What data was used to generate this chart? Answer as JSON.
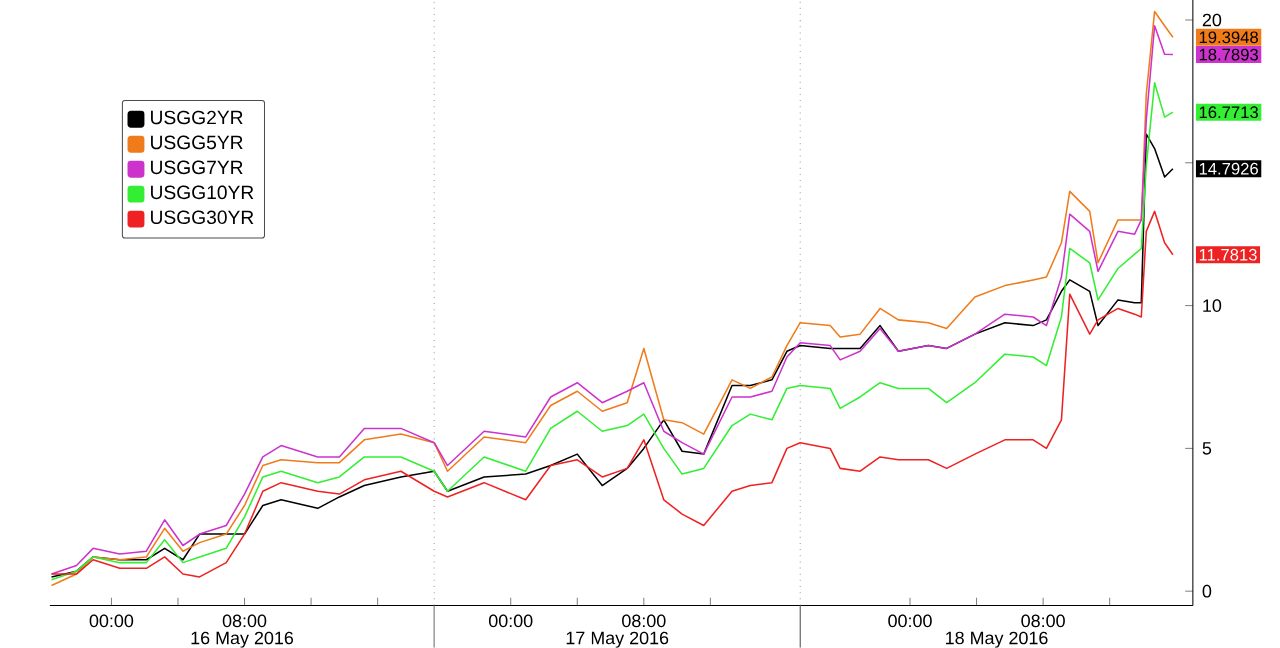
{
  "chart_data": {
    "type": "line",
    "x": [
      "2016-05-15T20:24",
      "2016-05-15T21:54",
      "2016-05-15T22:54",
      "2016-05-16T00:30",
      "2016-05-16T02:06",
      "2016-05-16T03:12",
      "2016-05-16T04:18",
      "2016-05-16T05:18",
      "2016-05-16T06:54",
      "2016-05-16T08:00",
      "2016-05-16T09:06",
      "2016-05-16T10:12",
      "2016-05-16T12:24",
      "2016-05-16T13:42",
      "2016-05-16T15:12",
      "2016-05-16T17:24",
      "2016-05-16T19:24",
      "2016-05-16T20:12",
      "2016-05-16T22:24",
      "2016-05-17T00:54",
      "2016-05-17T02:24",
      "2016-05-17T04:00",
      "2016-05-17T05:30",
      "2016-05-17T07:00",
      "2016-05-17T08:00",
      "2016-05-17T09:12",
      "2016-05-17T10:18",
      "2016-05-17T11:36",
      "2016-05-17T13:18",
      "2016-05-17T14:24",
      "2016-05-17T15:42",
      "2016-05-17T16:36",
      "2016-05-17T17:24",
      "2016-05-17T19:12",
      "2016-05-17T19:48",
      "2016-05-17T21:00",
      "2016-05-17T22:12",
      "2016-05-17T23:18",
      "2016-05-18T01:06",
      "2016-05-18T02:12",
      "2016-05-18T03:54",
      "2016-05-18T05:42",
      "2016-05-18T07:24",
      "2016-05-18T08:12",
      "2016-05-18T09:06",
      "2016-05-18T09:36",
      "2016-05-18T10:48",
      "2016-05-18T11:18",
      "2016-05-18T12:30",
      "2016-05-18T13:30",
      "2016-05-18T13:54",
      "2016-05-18T14:12",
      "2016-05-18T14:42",
      "2016-05-18T15:18",
      "2016-05-18T15:48"
    ],
    "series": [
      {
        "name": "USGG2YR",
        "color": "#000000",
        "values": [
          0.5,
          0.7,
          1.2,
          1.1,
          1.1,
          1.5,
          1.1,
          2.0,
          2.0,
          2.0,
          3.0,
          3.2,
          2.9,
          3.3,
          3.7,
          4.0,
          4.2,
          3.5,
          4.0,
          4.1,
          4.4,
          4.8,
          3.7,
          4.3,
          5.0,
          6.0,
          4.9,
          4.8,
          7.2,
          7.2,
          7.4,
          8.4,
          8.6,
          8.5,
          8.5,
          8.5,
          9.3,
          8.4,
          8.6,
          8.5,
          9.0,
          9.4,
          9.3,
          9.5,
          10.5,
          10.9,
          10.5,
          9.3,
          10.2,
          10.1,
          10.1,
          16.0,
          15.5,
          14.5,
          14.7926
        ],
        "value_labels": [
          null,
          null,
          null,
          null,
          null,
          null,
          null,
          null,
          null,
          null,
          null,
          null,
          null,
          null,
          null,
          null,
          null,
          null,
          null,
          null,
          null,
          null,
          null,
          null,
          null,
          null,
          null,
          null,
          null,
          null,
          null,
          null,
          null,
          null,
          null,
          null,
          null,
          null,
          null,
          null,
          null,
          null,
          null,
          null,
          null,
          null,
          null,
          null,
          null,
          null,
          null,
          null,
          null,
          null,
          "14.7926"
        ]
      },
      {
        "name": "USGG5YR",
        "color": "#f07b1a",
        "values": [
          0.2,
          0.6,
          1.2,
          1.1,
          1.2,
          2.2,
          1.4,
          1.7,
          2.0,
          3.0,
          4.4,
          4.6,
          4.5,
          4.5,
          5.3,
          5.5,
          5.2,
          4.2,
          5.4,
          5.2,
          6.5,
          7.0,
          6.3,
          6.6,
          8.5,
          6.0,
          5.9,
          5.5,
          7.4,
          7.1,
          7.5,
          8.6,
          9.4,
          9.3,
          8.9,
          9.0,
          9.9,
          9.5,
          9.4,
          9.2,
          10.3,
          10.7,
          10.9,
          11.0,
          12.2,
          14.0,
          13.3,
          11.5,
          13.0,
          13.0,
          13.0,
          17.4,
          20.3,
          19.8,
          19.3948
        ],
        "value_labels": [
          null,
          null,
          null,
          null,
          null,
          null,
          null,
          null,
          null,
          null,
          null,
          null,
          null,
          null,
          null,
          null,
          null,
          null,
          null,
          null,
          null,
          null,
          null,
          null,
          null,
          null,
          null,
          null,
          null,
          null,
          null,
          null,
          null,
          null,
          null,
          null,
          null,
          null,
          null,
          null,
          null,
          null,
          null,
          null,
          null,
          null,
          null,
          null,
          null,
          null,
          null,
          null,
          null,
          null,
          "19.3948"
        ]
      },
      {
        "name": "USGG7YR",
        "color": "#cc33cc",
        "values": [
          0.6,
          0.9,
          1.5,
          1.3,
          1.4,
          2.5,
          1.6,
          2.0,
          2.3,
          3.4,
          4.7,
          5.1,
          4.7,
          4.7,
          5.7,
          5.7,
          5.2,
          4.4,
          5.6,
          5.4,
          6.8,
          7.3,
          6.6,
          7.0,
          7.3,
          5.6,
          5.2,
          4.8,
          6.8,
          6.8,
          7.0,
          8.2,
          8.7,
          8.6,
          8.1,
          8.4,
          9.2,
          8.4,
          8.6,
          8.5,
          9.0,
          9.7,
          9.6,
          9.3,
          11.0,
          13.2,
          12.6,
          11.2,
          12.6,
          12.5,
          13.0,
          16.5,
          19.8,
          18.8,
          18.7893
        ],
        "value_labels": [
          null,
          null,
          null,
          null,
          null,
          null,
          null,
          null,
          null,
          null,
          null,
          null,
          null,
          null,
          null,
          null,
          null,
          null,
          null,
          null,
          null,
          null,
          null,
          null,
          null,
          null,
          null,
          null,
          null,
          null,
          null,
          null,
          null,
          null,
          null,
          null,
          null,
          null,
          null,
          null,
          null,
          null,
          null,
          null,
          null,
          null,
          null,
          null,
          null,
          null,
          null,
          null,
          null,
          null,
          "18.7893"
        ]
      },
      {
        "name": "USGG10YR",
        "color": "#33ee33",
        "values": [
          0.4,
          0.7,
          1.2,
          1.0,
          1.0,
          1.8,
          1.0,
          1.2,
          1.5,
          2.6,
          4.0,
          4.2,
          3.8,
          4.0,
          4.7,
          4.7,
          4.2,
          3.5,
          4.7,
          4.2,
          5.7,
          6.3,
          5.6,
          5.8,
          6.2,
          5.0,
          4.1,
          4.3,
          5.8,
          6.2,
          6.0,
          7.1,
          7.2,
          7.1,
          6.4,
          6.8,
          7.3,
          7.1,
          7.1,
          6.6,
          7.3,
          8.3,
          8.2,
          7.9,
          9.6,
          12.0,
          11.5,
          10.2,
          11.3,
          11.8,
          12.0,
          14.9,
          17.8,
          16.6,
          16.7713
        ],
        "value_labels": [
          null,
          null,
          null,
          null,
          null,
          null,
          null,
          null,
          null,
          null,
          null,
          null,
          null,
          null,
          null,
          null,
          null,
          null,
          null,
          null,
          null,
          null,
          null,
          null,
          null,
          null,
          null,
          null,
          null,
          null,
          null,
          null,
          null,
          null,
          null,
          null,
          null,
          null,
          null,
          null,
          null,
          null,
          null,
          null,
          null,
          null,
          null,
          null,
          null,
          null,
          null,
          null,
          null,
          null,
          "16.7713"
        ]
      },
      {
        "name": "USGG30YR",
        "color": "#ee2222",
        "values": [
          0.6,
          0.6,
          1.1,
          0.8,
          0.8,
          1.2,
          0.6,
          0.5,
          1.0,
          2.0,
          3.5,
          3.8,
          3.5,
          3.4,
          3.9,
          4.2,
          3.5,
          3.3,
          3.8,
          3.2,
          4.4,
          4.6,
          4.0,
          4.3,
          5.3,
          3.2,
          2.7,
          2.3,
          3.5,
          3.7,
          3.8,
          5.0,
          5.2,
          5.0,
          4.3,
          4.2,
          4.7,
          4.6,
          4.6,
          4.3,
          4.8,
          5.3,
          5.3,
          5.0,
          6.0,
          10.4,
          9.0,
          9.5,
          9.9,
          9.7,
          9.6,
          12.6,
          13.3,
          12.2,
          11.7813
        ],
        "value_labels": [
          null,
          null,
          null,
          null,
          null,
          null,
          null,
          null,
          null,
          null,
          null,
          null,
          null,
          null,
          null,
          null,
          null,
          null,
          null,
          null,
          null,
          null,
          null,
          null,
          null,
          null,
          null,
          null,
          null,
          null,
          null,
          null,
          null,
          null,
          null,
          null,
          null,
          null,
          null,
          null,
          null,
          null,
          null,
          null,
          null,
          null,
          null,
          null,
          null,
          null,
          null,
          null,
          null,
          null,
          "11.7813"
        ]
      }
    ],
    "xlim": [
      "2016-05-15T20:18",
      "2016-05-18T17:00"
    ],
    "xticks": [
      {
        "value": "2016-05-16T00:00",
        "label": "00:00"
      },
      {
        "value": "2016-05-16T04:00",
        "label": null
      },
      {
        "value": "2016-05-16T08:00",
        "label": "08:00"
      },
      {
        "value": "2016-05-16T12:00",
        "label": null
      },
      {
        "value": "2016-05-16T16:00",
        "label": null
      },
      {
        "value": "2016-05-17T00:00",
        "label": "00:00"
      },
      {
        "value": "2016-05-17T04:00",
        "label": null
      },
      {
        "value": "2016-05-17T08:00",
        "label": "08:00"
      },
      {
        "value": "2016-05-17T12:00",
        "label": null
      },
      {
        "value": "2016-05-18T00:00",
        "label": "00:00"
      },
      {
        "value": "2016-05-18T04:00",
        "label": null
      },
      {
        "value": "2016-05-18T08:00",
        "label": "08:00"
      },
      {
        "value": "2016-05-18T12:00",
        "label": null
      }
    ],
    "ylim": [
      -0.5,
      20.7
    ],
    "yticks": [
      0,
      5,
      10,
      {
        "value": 15,
        "label": null
      },
      20
    ],
    "ref_lines": [
      {
        "axis": "x",
        "value": "2016-05-16T19:24",
        "color": "#999999",
        "line_style": "dotted"
      },
      {
        "axis": "x",
        "value": "2016-05-17T17:24",
        "color": "#999999",
        "line_style": "dotted"
      }
    ],
    "annotations": [
      "16 May 2016",
      "17 May 2016",
      "18 May 2016"
    ],
    "legend": "top left",
    "grid": false,
    "marker": "none",
    "line_style": "solid"
  }
}
